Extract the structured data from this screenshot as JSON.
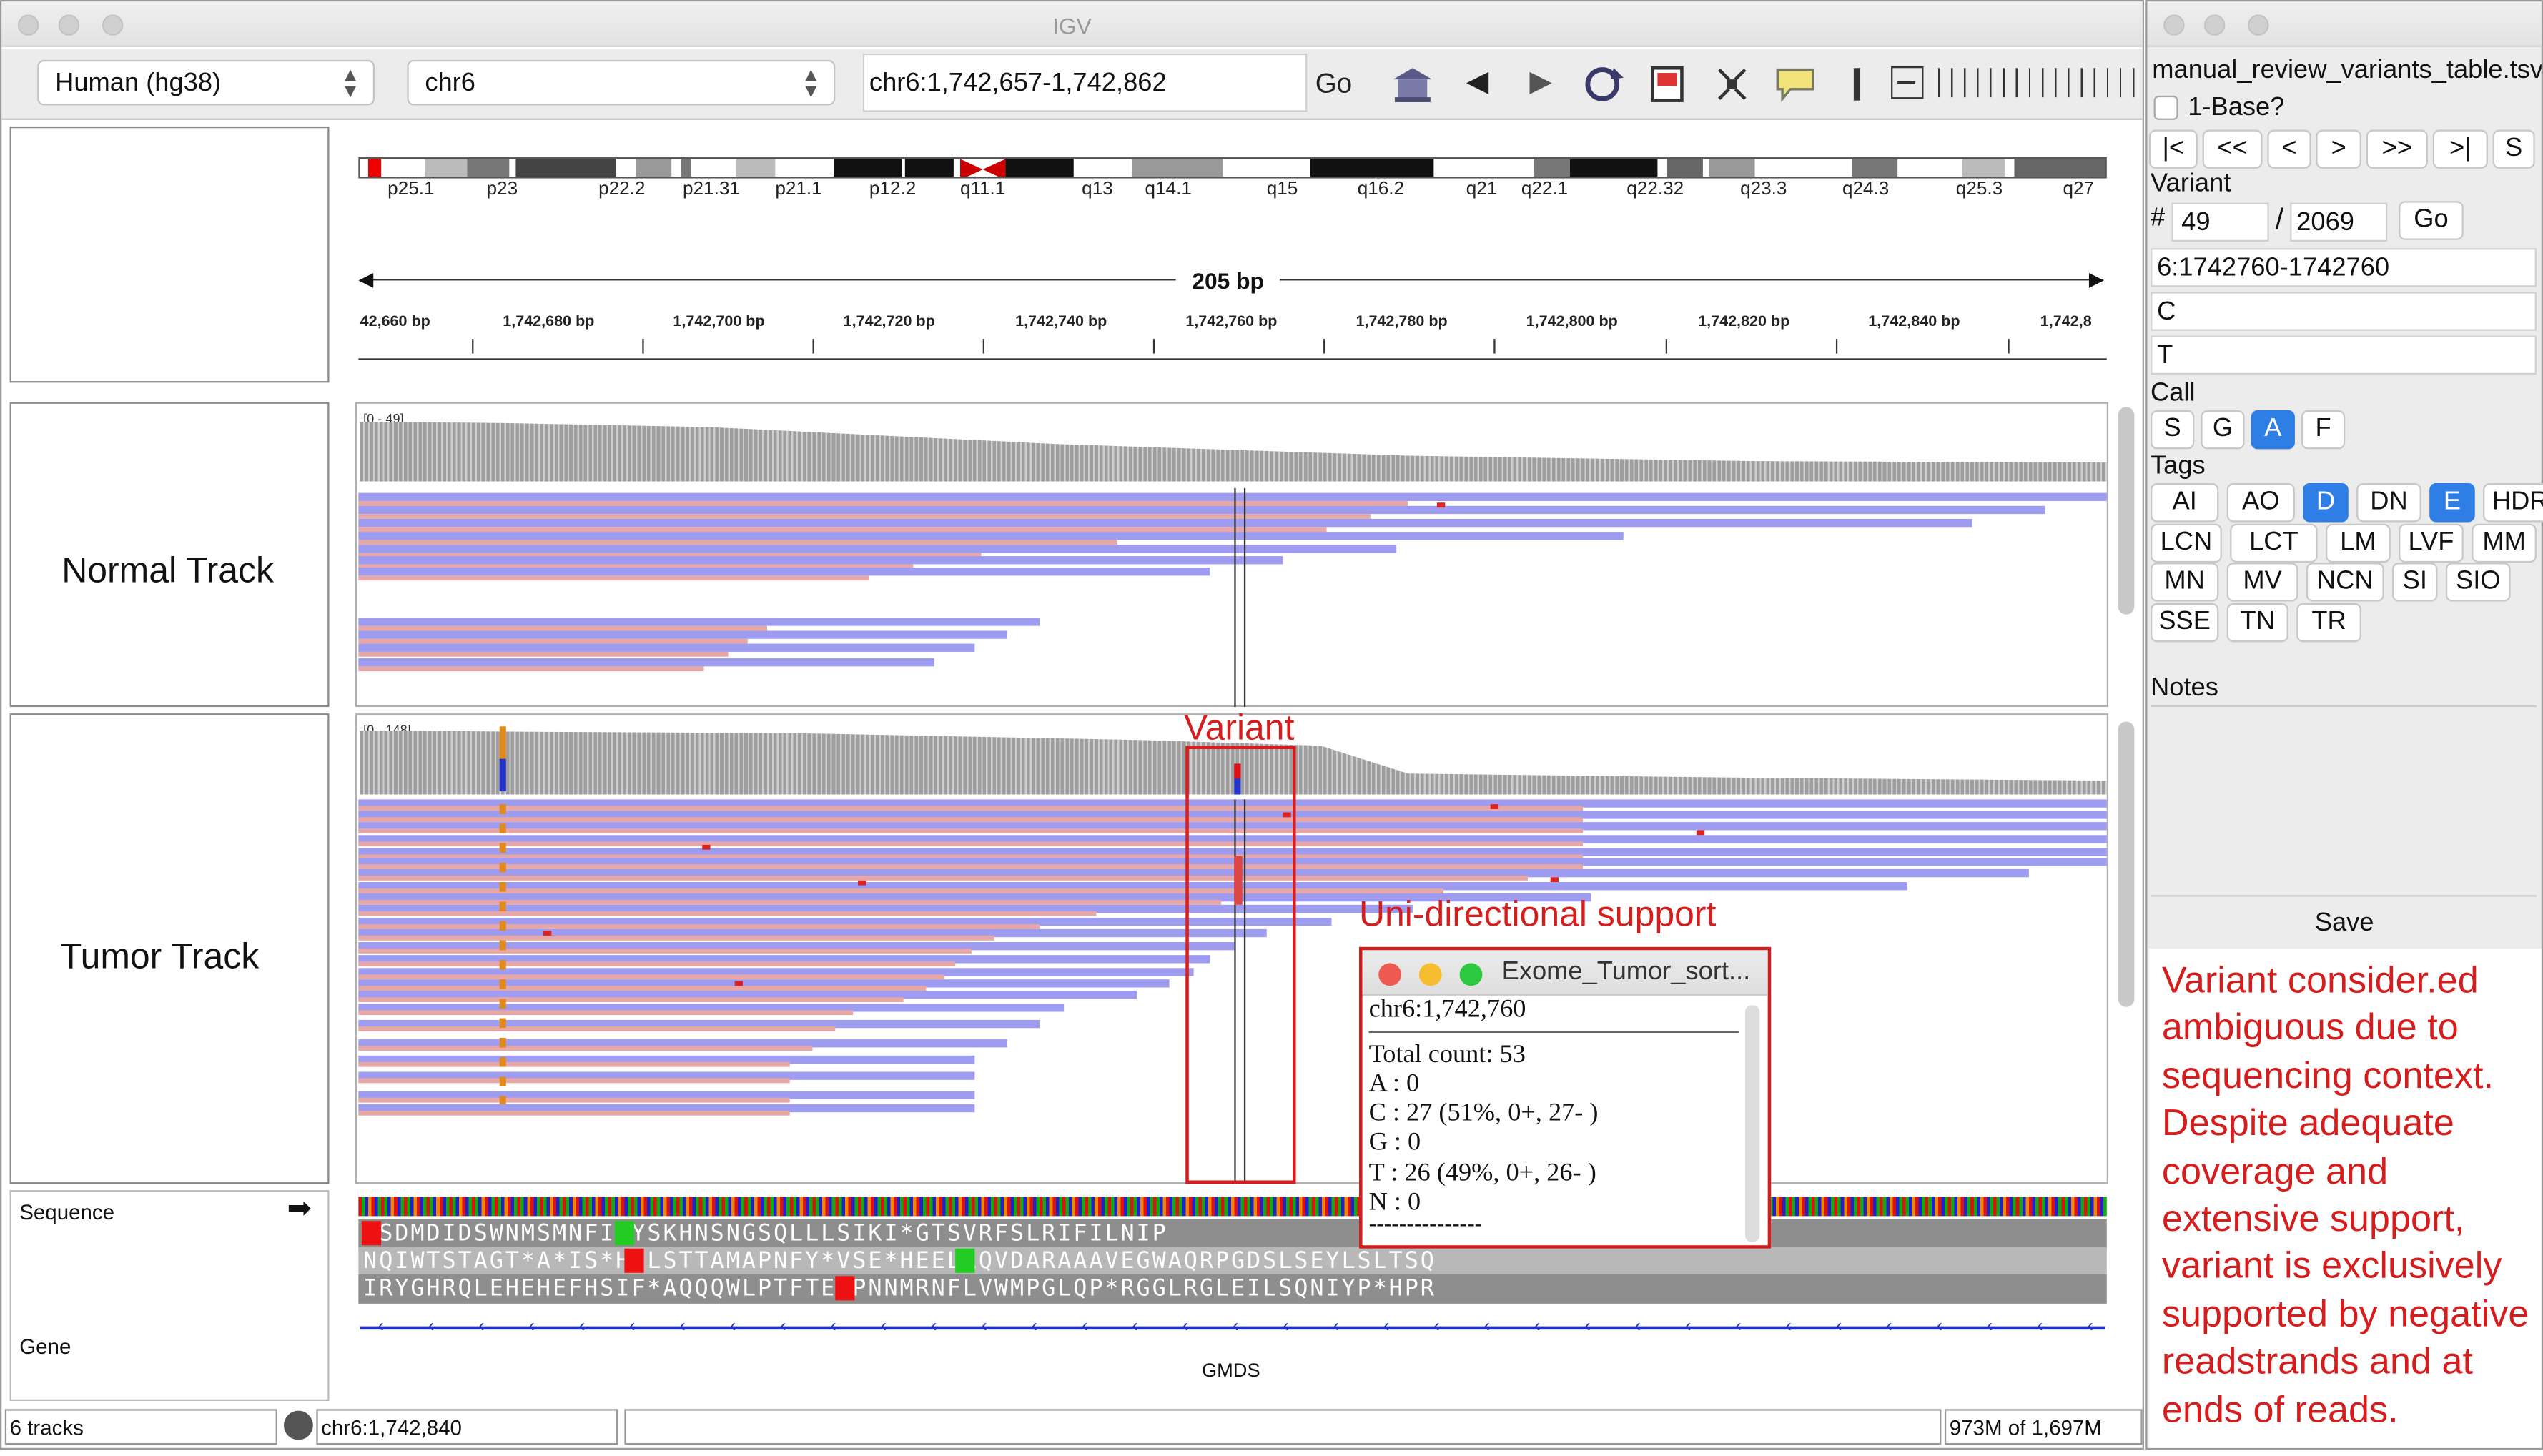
{
  "igv": {
    "window_title": "IGV",
    "genome": "Human (hg38)",
    "chromosome": "chr6",
    "locus": "chr6:1,742,657-1,742,862",
    "go_label": "Go",
    "cytobands": [
      "p25.1",
      "p23",
      "p22.2",
      "p21.31",
      "p21.1",
      "p12.2",
      "q11.1",
      "q13",
      "q14.1",
      "q15",
      "q16.2",
      "q21",
      "q22.1",
      "q22.32",
      "q23.3",
      "q24.3",
      "q25.3",
      "q27"
    ],
    "span_label": "205 bp",
    "ruler_labels": [
      "42,660 bp",
      "1,742,680 bp",
      "1,742,700 bp",
      "1,742,720 bp",
      "1,742,740 bp",
      "1,742,760 bp",
      "1,742,780 bp",
      "1,742,800 bp",
      "1,742,820 bp",
      "1,742,840 bp",
      "1,742,8"
    ],
    "normal_track": {
      "label": "Normal Track",
      "range": "[0 - 49]"
    },
    "tumor_track": {
      "label": "Tumor Track",
      "range": "[0 - 148]"
    },
    "sequence_label": "Sequence",
    "gene_label": "Gene",
    "gene_name": "GMDS",
    "aa_rows": [
      "*SDMDIDSWNMSMNFIAYSKHNSNGSQLLLSIKI*GTSVRFSLRIFILNIP",
      "NQIWTSTAGT*A*IS*HILSTTAMAPNFY*VSE*HEELLQVDARAAAVEGWAQRPGDSLSEYLSLTSQ",
      "IRYGHRQLEHEHEFHSIF*AQQQWLPTFTEYPNNMRNFLVWMPGLQP*RGGLRGLEILSQNIYP*HPR"
    ],
    "status": {
      "tracks": "6 tracks",
      "locus": "chr6:1,742,840",
      "memory": "973M of 1,697M"
    }
  },
  "annotations": {
    "variant_label": "Variant",
    "unidirectional_label": "Uni-directional support"
  },
  "popup": {
    "title": "Exome_Tumor_sort...",
    "position": "chr6:1,742,760",
    "total": "Total count: 53",
    "a": "A : 0",
    "c": "C : 27 (51%, 0+, 27- )",
    "g": "G : 0",
    "t": "T : 26 (49%, 0+, 26- )",
    "n": "N : 0",
    "sep": "---------------"
  },
  "review_panel": {
    "filename": "manual_review_variants_table.tsv",
    "one_base_label": "1-Base?",
    "nav_buttons": [
      "|<",
      "<<",
      "<",
      ">",
      ">>",
      ">|",
      "S"
    ],
    "variant_label": "Variant",
    "hash": "#",
    "index": "49",
    "slash": "/",
    "total": "2069",
    "go_label": "Go",
    "coordinates": "6:1742760-1742760",
    "ref": "C",
    "alt": "T",
    "call_label": "Call",
    "calls": [
      "S",
      "G",
      "A",
      "F"
    ],
    "selected_call": "A",
    "tags_label": "Tags",
    "tags_row1": [
      "AI",
      "AO",
      "D",
      "DN",
      "E",
      "HDR"
    ],
    "tags_row2": [
      "LCN",
      "LCT",
      "LM",
      "LVF",
      "MM"
    ],
    "tags_row3": [
      "MN",
      "MV",
      "NCN",
      "SI",
      "SIO"
    ],
    "tags_row4": [
      "SSE",
      "TN",
      "TR"
    ],
    "selected_tags": [
      "D",
      "E"
    ],
    "notes_label": "Notes",
    "save_label": "Save",
    "comment": "Variant consider.ed ambiguous due to sequencing context. Despite adequate coverage and extensive support, variant is exclusively supported by negative readstrands and at ends of reads."
  },
  "colors": {
    "annotation_red": "#d61d1d",
    "selected_blue": "#2f7ee6",
    "read_fill": "#9e9cf0"
  }
}
